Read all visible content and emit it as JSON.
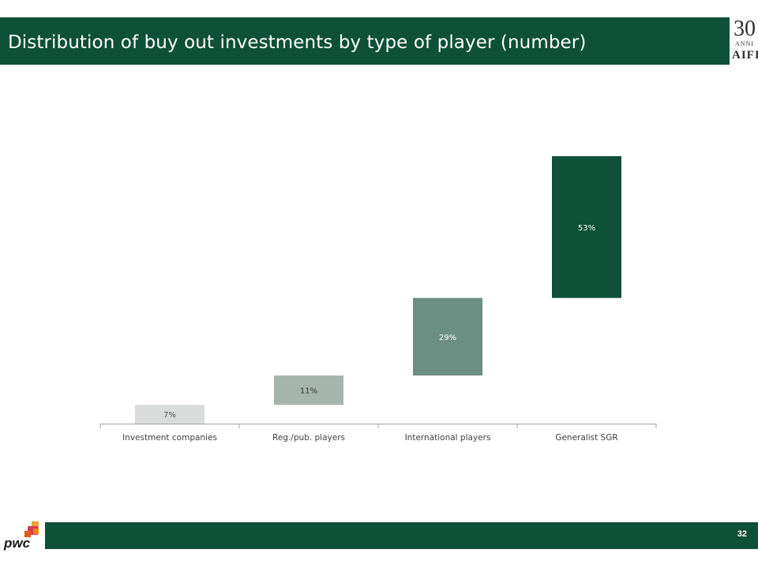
{
  "header": {
    "title": "Distribution of buy out investments by type of player (number)"
  },
  "logo": {
    "number": "30",
    "anni": "ANNI",
    "brand": "AIFI"
  },
  "footer": {
    "page_number": "32",
    "brand": "pwc"
  },
  "colors": {
    "brand_green": "#0e5038",
    "bar_1": "#d9dcdb",
    "bar_2": "#a5b5ae",
    "bar_3": "#6b8f82",
    "bar_4": "#0e5038"
  },
  "chart_data": {
    "type": "bar",
    "subtype": "waterfall",
    "title": "",
    "xlabel": "",
    "ylabel": "",
    "categories": [
      "Investment companies",
      "Reg./pub. players",
      "International players",
      "Generalist SGR"
    ],
    "values": [
      7,
      11,
      29,
      53
    ],
    "labels": [
      "7%",
      "11%",
      "29%",
      "53%"
    ],
    "unit": "%",
    "ylim": [
      0,
      100
    ],
    "grid": false,
    "legend": "none"
  }
}
